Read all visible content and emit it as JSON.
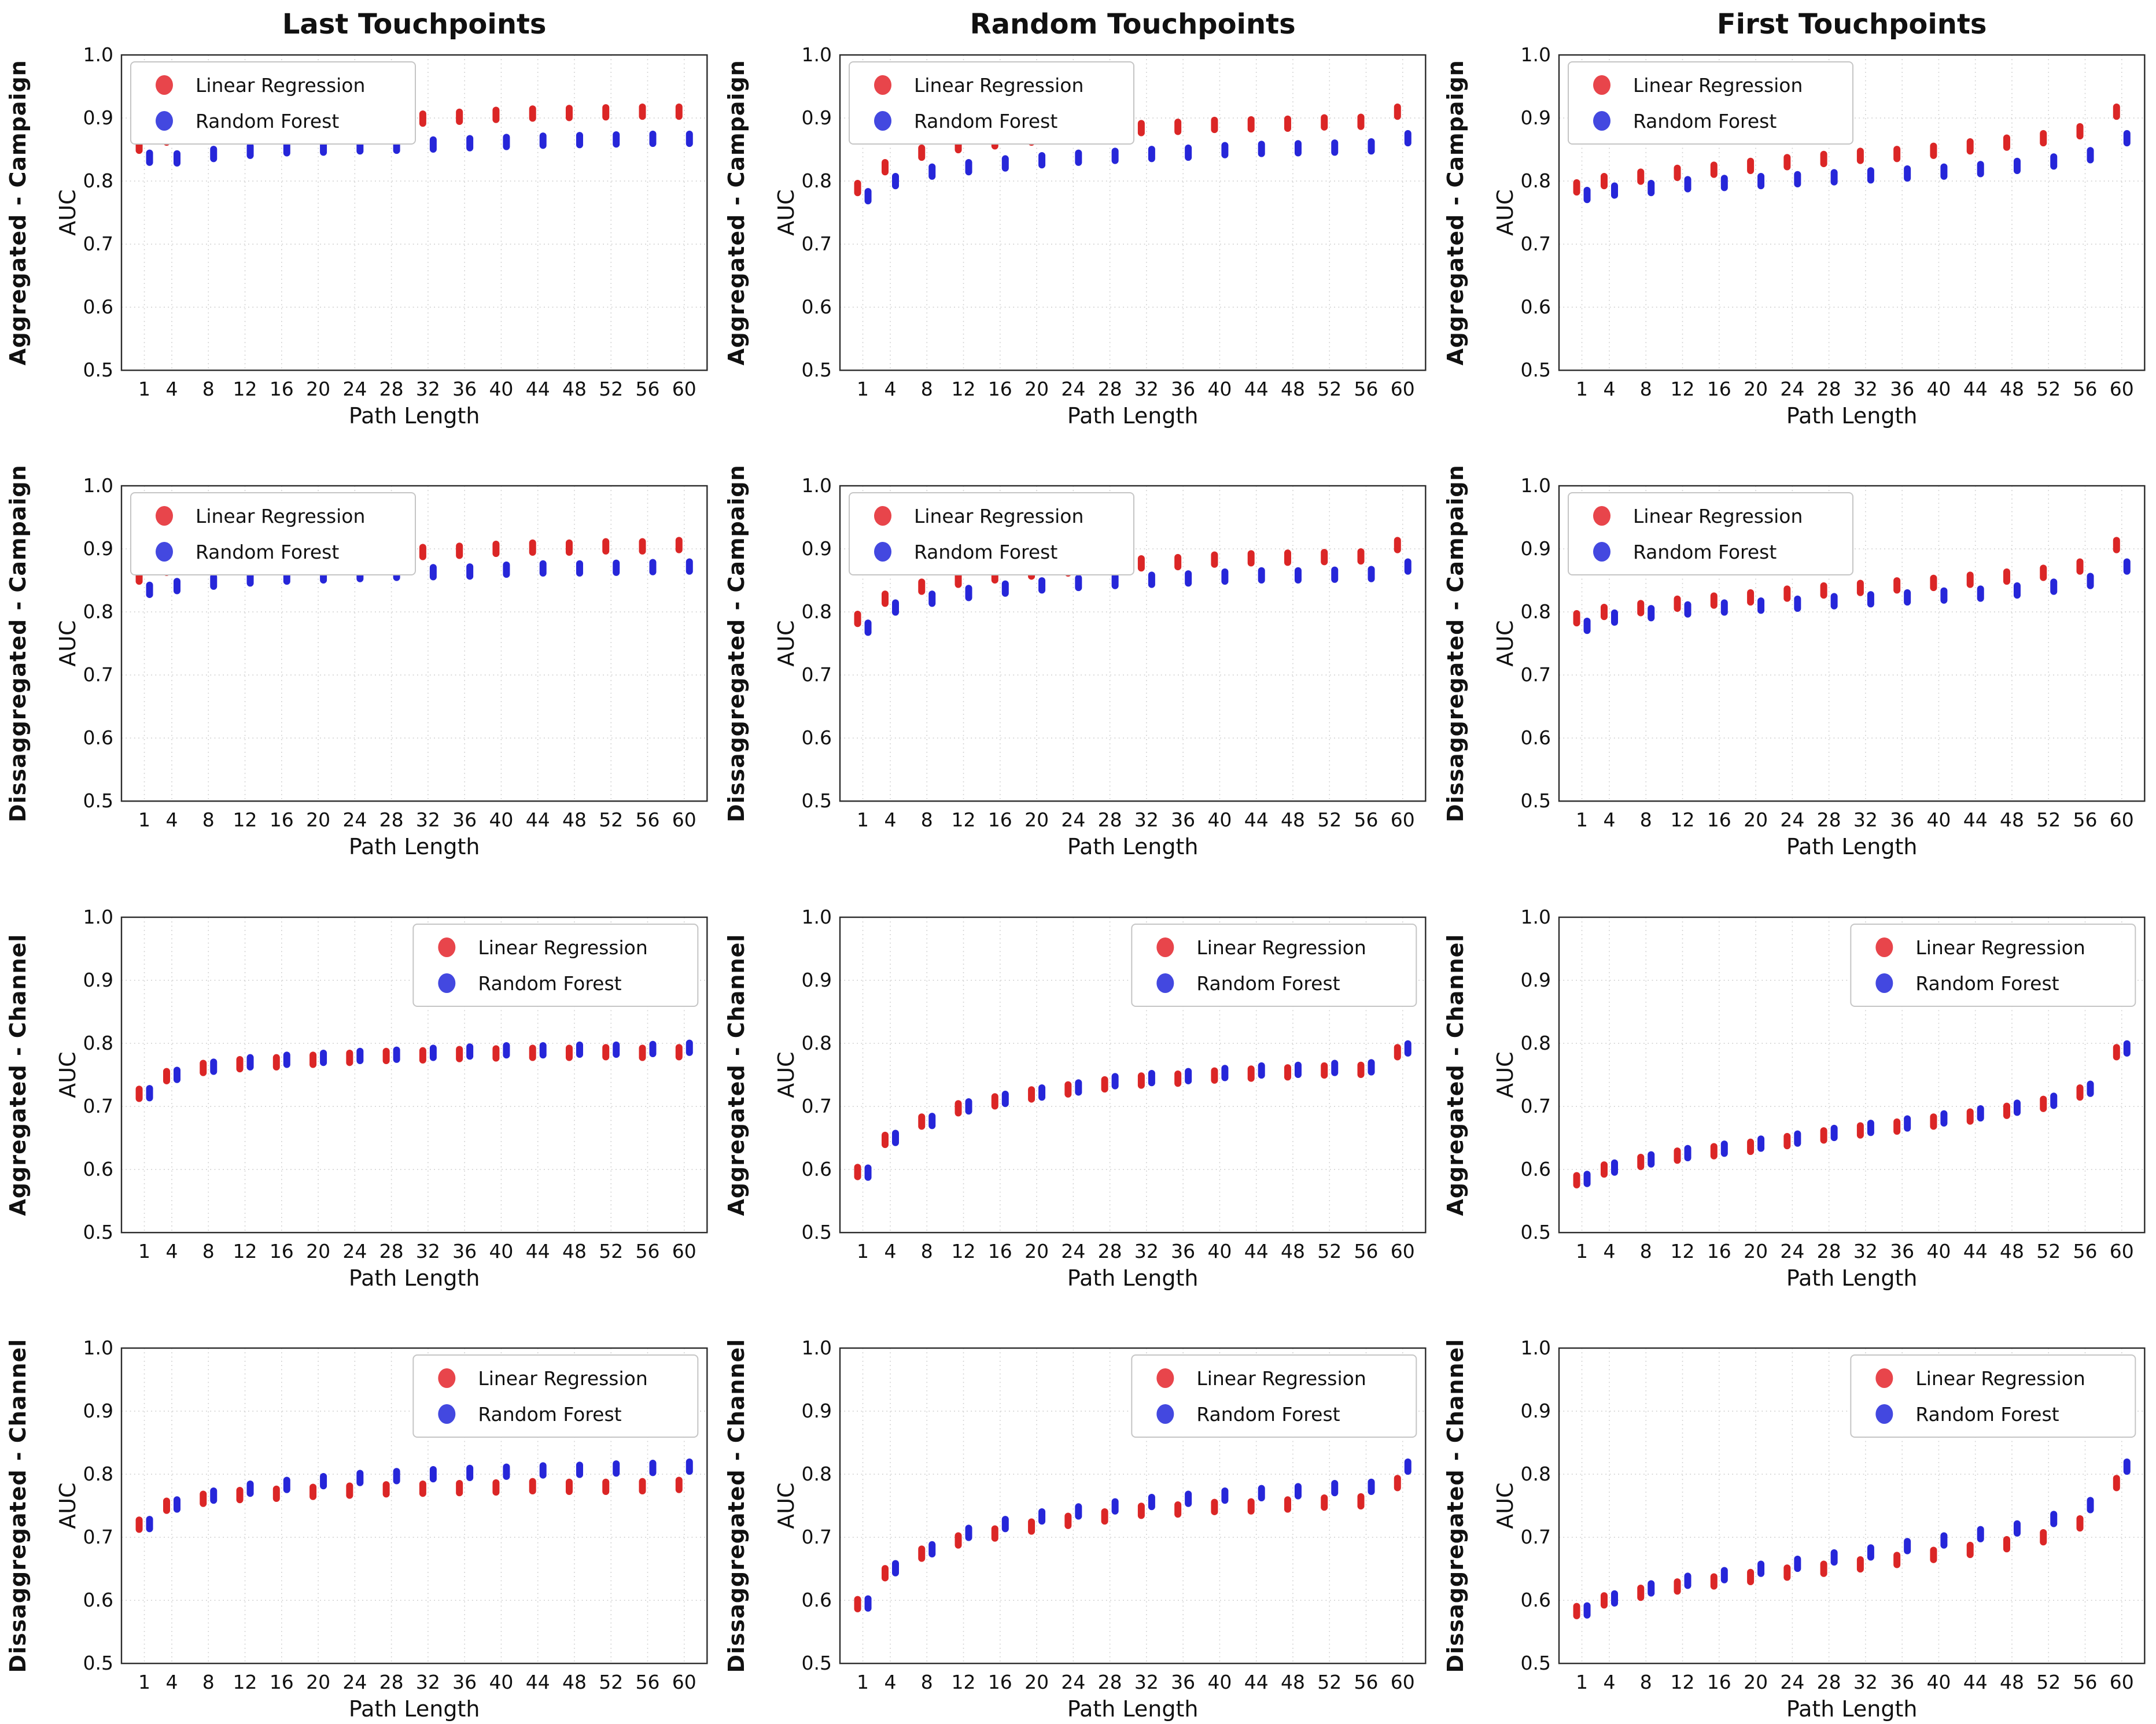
{
  "figure": {
    "background": "#ffffff",
    "column_titles": [
      "Last Touchpoints",
      "Random Touchpoints",
      "First Touchpoints"
    ],
    "row_labels": [
      "Aggregated - Campaign",
      "Dissaggregated - Campaign",
      "Aggregated - Channel",
      "Dissaggregated - Channel"
    ],
    "xlabel": "Path Length",
    "ylabel": "AUC",
    "legend_items": [
      {
        "label": "Linear Regression",
        "color": "#e8454b"
      },
      {
        "label": "Random Forest",
        "color": "#4348e0"
      }
    ],
    "colors": {
      "lr_point": "#d81515",
      "rf_point": "#1616d6",
      "grid": "#cfcfcf",
      "axis_border": "#2b2b2b",
      "text": "#111111",
      "legend_border": "#c5c5c5"
    }
  },
  "chart_data": {
    "type": "scatter",
    "grid": true,
    "x": [
      1,
      4,
      8,
      12,
      16,
      20,
      24,
      28,
      32,
      36,
      40,
      44,
      48,
      52,
      56,
      60
    ],
    "xtick_labels": [
      "1",
      "4",
      "8",
      "12",
      "16",
      "20",
      "24",
      "28",
      "32",
      "36",
      "40",
      "44",
      "48",
      "52",
      "56",
      "60"
    ],
    "xlabel": "Path Length",
    "ylabel": "AUC",
    "ylim": [
      0.5,
      1.0
    ],
    "yticks": [
      0.5,
      0.6,
      0.7,
      0.8,
      0.9,
      1.0
    ],
    "ytick_labels": [
      "0.5",
      "0.6",
      "0.7",
      "0.8",
      "0.9",
      "1.0"
    ],
    "cluster_halfspread": 0.007,
    "subplots": [
      {
        "row": 0,
        "col": 0,
        "row_label": "Aggregated - Campaign",
        "col_title": "Last Touchpoints",
        "legend_position": "upper-left",
        "series": [
          {
            "name": "Linear Regression",
            "values": [
              0.856,
              0.869,
              0.879,
              0.886,
              0.889,
              0.891,
              0.893,
              0.897,
              0.899,
              0.902,
              0.905,
              0.907,
              0.908,
              0.909,
              0.91,
              0.91
            ]
          },
          {
            "name": "Random Forest",
            "values": [
              0.837,
              0.836,
              0.843,
              0.848,
              0.852,
              0.853,
              0.855,
              0.856,
              0.858,
              0.86,
              0.862,
              0.864,
              0.865,
              0.866,
              0.867,
              0.867
            ]
          }
        ]
      },
      {
        "row": 0,
        "col": 1,
        "row_label": "Aggregated - Campaign",
        "col_title": "Random Touchpoints",
        "legend_position": "upper-left",
        "series": [
          {
            "name": "Linear Regression",
            "values": [
              0.789,
              0.822,
              0.845,
              0.857,
              0.863,
              0.869,
              0.875,
              0.88,
              0.884,
              0.886,
              0.889,
              0.89,
              0.891,
              0.893,
              0.894,
              0.91
            ]
          },
          {
            "name": "Random Forest",
            "values": [
              0.776,
              0.8,
              0.815,
              0.822,
              0.828,
              0.833,
              0.837,
              0.84,
              0.843,
              0.845,
              0.849,
              0.851,
              0.852,
              0.853,
              0.855,
              0.868
            ]
          }
        ]
      },
      {
        "row": 0,
        "col": 2,
        "row_label": "Aggregated - Campaign",
        "col_title": "First Touchpoints",
        "legend_position": "upper-left",
        "series": [
          {
            "name": "Linear Regression",
            "values": [
              0.79,
              0.8,
              0.807,
              0.813,
              0.818,
              0.824,
              0.83,
              0.835,
              0.84,
              0.843,
              0.848,
              0.855,
              0.861,
              0.868,
              0.879,
              0.91
            ]
          },
          {
            "name": "Random Forest",
            "values": [
              0.778,
              0.785,
              0.789,
              0.795,
              0.797,
              0.8,
              0.803,
              0.806,
              0.809,
              0.812,
              0.815,
              0.819,
              0.824,
              0.831,
              0.841,
              0.868
            ]
          }
        ]
      },
      {
        "row": 1,
        "col": 0,
        "row_label": "Dissaggregated - Campaign",
        "col_title": "",
        "legend_position": "upper-left",
        "series": [
          {
            "name": "Linear Regression",
            "values": [
              0.856,
              0.87,
              0.879,
              0.885,
              0.888,
              0.89,
              0.892,
              0.894,
              0.895,
              0.897,
              0.9,
              0.902,
              0.902,
              0.904,
              0.904,
              0.906
            ]
          },
          {
            "name": "Random Forest",
            "values": [
              0.835,
              0.841,
              0.848,
              0.853,
              0.856,
              0.858,
              0.86,
              0.862,
              0.863,
              0.864,
              0.867,
              0.869,
              0.869,
              0.87,
              0.871,
              0.872
            ]
          }
        ]
      },
      {
        "row": 1,
        "col": 1,
        "row_label": "Dissaggregated - Campaign",
        "col_title": "",
        "legend_position": "upper-left",
        "series": [
          {
            "name": "Linear Regression",
            "values": [
              0.789,
              0.821,
              0.84,
              0.851,
              0.858,
              0.864,
              0.869,
              0.874,
              0.877,
              0.879,
              0.883,
              0.885,
              0.886,
              0.887,
              0.888,
              0.906
            ]
          },
          {
            "name": "Random Forest",
            "values": [
              0.775,
              0.807,
              0.821,
              0.83,
              0.837,
              0.842,
              0.846,
              0.849,
              0.851,
              0.853,
              0.856,
              0.858,
              0.858,
              0.859,
              0.86,
              0.872
            ]
          }
        ]
      },
      {
        "row": 1,
        "col": 2,
        "row_label": "Dissaggregated - Campaign",
        "col_title": "",
        "legend_position": "upper-left",
        "series": [
          {
            "name": "Linear Regression",
            "values": [
              0.79,
              0.8,
              0.806,
              0.813,
              0.818,
              0.823,
              0.829,
              0.834,
              0.838,
              0.842,
              0.846,
              0.851,
              0.856,
              0.862,
              0.872,
              0.906
            ]
          },
          {
            "name": "Random Forest",
            "values": [
              0.778,
              0.791,
              0.798,
              0.804,
              0.807,
              0.81,
              0.813,
              0.817,
              0.82,
              0.823,
              0.826,
              0.829,
              0.834,
              0.84,
              0.849,
              0.872
            ]
          }
        ]
      },
      {
        "row": 2,
        "col": 0,
        "row_label": "Aggregated - Channel",
        "col_title": "",
        "legend_position": "upper-right",
        "series": [
          {
            "name": "Linear Regression",
            "values": [
              0.72,
              0.748,
              0.761,
              0.767,
              0.77,
              0.774,
              0.777,
              0.78,
              0.781,
              0.783,
              0.784,
              0.785,
              0.785,
              0.786,
              0.785,
              0.786
            ]
          },
          {
            "name": "Random Forest",
            "values": [
              0.721,
              0.75,
              0.763,
              0.77,
              0.774,
              0.777,
              0.78,
              0.782,
              0.785,
              0.787,
              0.789,
              0.789,
              0.79,
              0.79,
              0.791,
              0.793
            ]
          }
        ]
      },
      {
        "row": 2,
        "col": 1,
        "row_label": "Aggregated - Channel",
        "col_title": "",
        "legend_position": "upper-right",
        "series": [
          {
            "name": "Linear Regression",
            "values": [
              0.596,
              0.647,
              0.676,
              0.697,
              0.708,
              0.719,
              0.727,
              0.735,
              0.741,
              0.744,
              0.749,
              0.752,
              0.754,
              0.757,
              0.758,
              0.786
            ]
          },
          {
            "name": "Random Forest",
            "values": [
              0.595,
              0.65,
              0.677,
              0.7,
              0.712,
              0.722,
              0.73,
              0.74,
              0.745,
              0.748,
              0.753,
              0.757,
              0.758,
              0.761,
              0.762,
              0.792
            ]
          }
        ]
      },
      {
        "row": 2,
        "col": 2,
        "row_label": "Aggregated - Channel",
        "col_title": "",
        "legend_position": "upper-right",
        "series": [
          {
            "name": "Linear Regression",
            "values": [
              0.583,
              0.6,
              0.612,
              0.622,
              0.629,
              0.636,
              0.645,
              0.654,
              0.662,
              0.668,
              0.676,
              0.684,
              0.693,
              0.704,
              0.722,
              0.786
            ]
          },
          {
            "name": "Random Forest",
            "values": [
              0.585,
              0.603,
              0.616,
              0.626,
              0.633,
              0.641,
              0.649,
              0.658,
              0.666,
              0.673,
              0.681,
              0.689,
              0.698,
              0.709,
              0.728,
              0.792
            ]
          }
        ]
      },
      {
        "row": 3,
        "col": 0,
        "row_label": "Dissaggregated - Channel",
        "col_title": "",
        "legend_position": "upper-right",
        "series": [
          {
            "name": "Linear Regression",
            "values": [
              0.72,
              0.75,
              0.761,
              0.767,
              0.769,
              0.772,
              0.774,
              0.776,
              0.777,
              0.778,
              0.779,
              0.781,
              0.78,
              0.78,
              0.781,
              0.783
            ]
          },
          {
            "name": "Random Forest",
            "values": [
              0.721,
              0.752,
              0.766,
              0.777,
              0.783,
              0.789,
              0.794,
              0.797,
              0.8,
              0.802,
              0.804,
              0.806,
              0.807,
              0.809,
              0.81,
              0.812
            ]
          }
        ]
      },
      {
        "row": 3,
        "col": 1,
        "row_label": "Dissaggregated - Channel",
        "col_title": "",
        "legend_position": "upper-right",
        "series": [
          {
            "name": "Linear Regression",
            "values": [
              0.594,
              0.643,
              0.674,
              0.695,
              0.706,
              0.717,
              0.726,
              0.733,
              0.742,
              0.744,
              0.748,
              0.749,
              0.752,
              0.755,
              0.757,
              0.786
            ]
          },
          {
            "name": "Random Forest",
            "values": [
              0.595,
              0.651,
              0.681,
              0.707,
              0.721,
              0.733,
              0.741,
              0.749,
              0.756,
              0.761,
              0.766,
              0.77,
              0.773,
              0.778,
              0.78,
              0.812
            ]
          }
        ]
      },
      {
        "row": 3,
        "col": 2,
        "row_label": "Dissaggregated - Channel",
        "col_title": "",
        "legend_position": "upper-right",
        "series": [
          {
            "name": "Linear Regression",
            "values": [
              0.583,
              0.6,
              0.612,
              0.622,
              0.63,
              0.637,
              0.644,
              0.65,
              0.657,
              0.664,
              0.672,
              0.68,
              0.689,
              0.7,
              0.722,
              0.786
            ]
          },
          {
            "name": "Random Forest",
            "values": [
              0.584,
              0.603,
              0.619,
              0.631,
              0.64,
              0.65,
              0.658,
              0.668,
              0.676,
              0.686,
              0.695,
              0.705,
              0.714,
              0.729,
              0.751,
              0.812
            ]
          }
        ]
      }
    ]
  }
}
